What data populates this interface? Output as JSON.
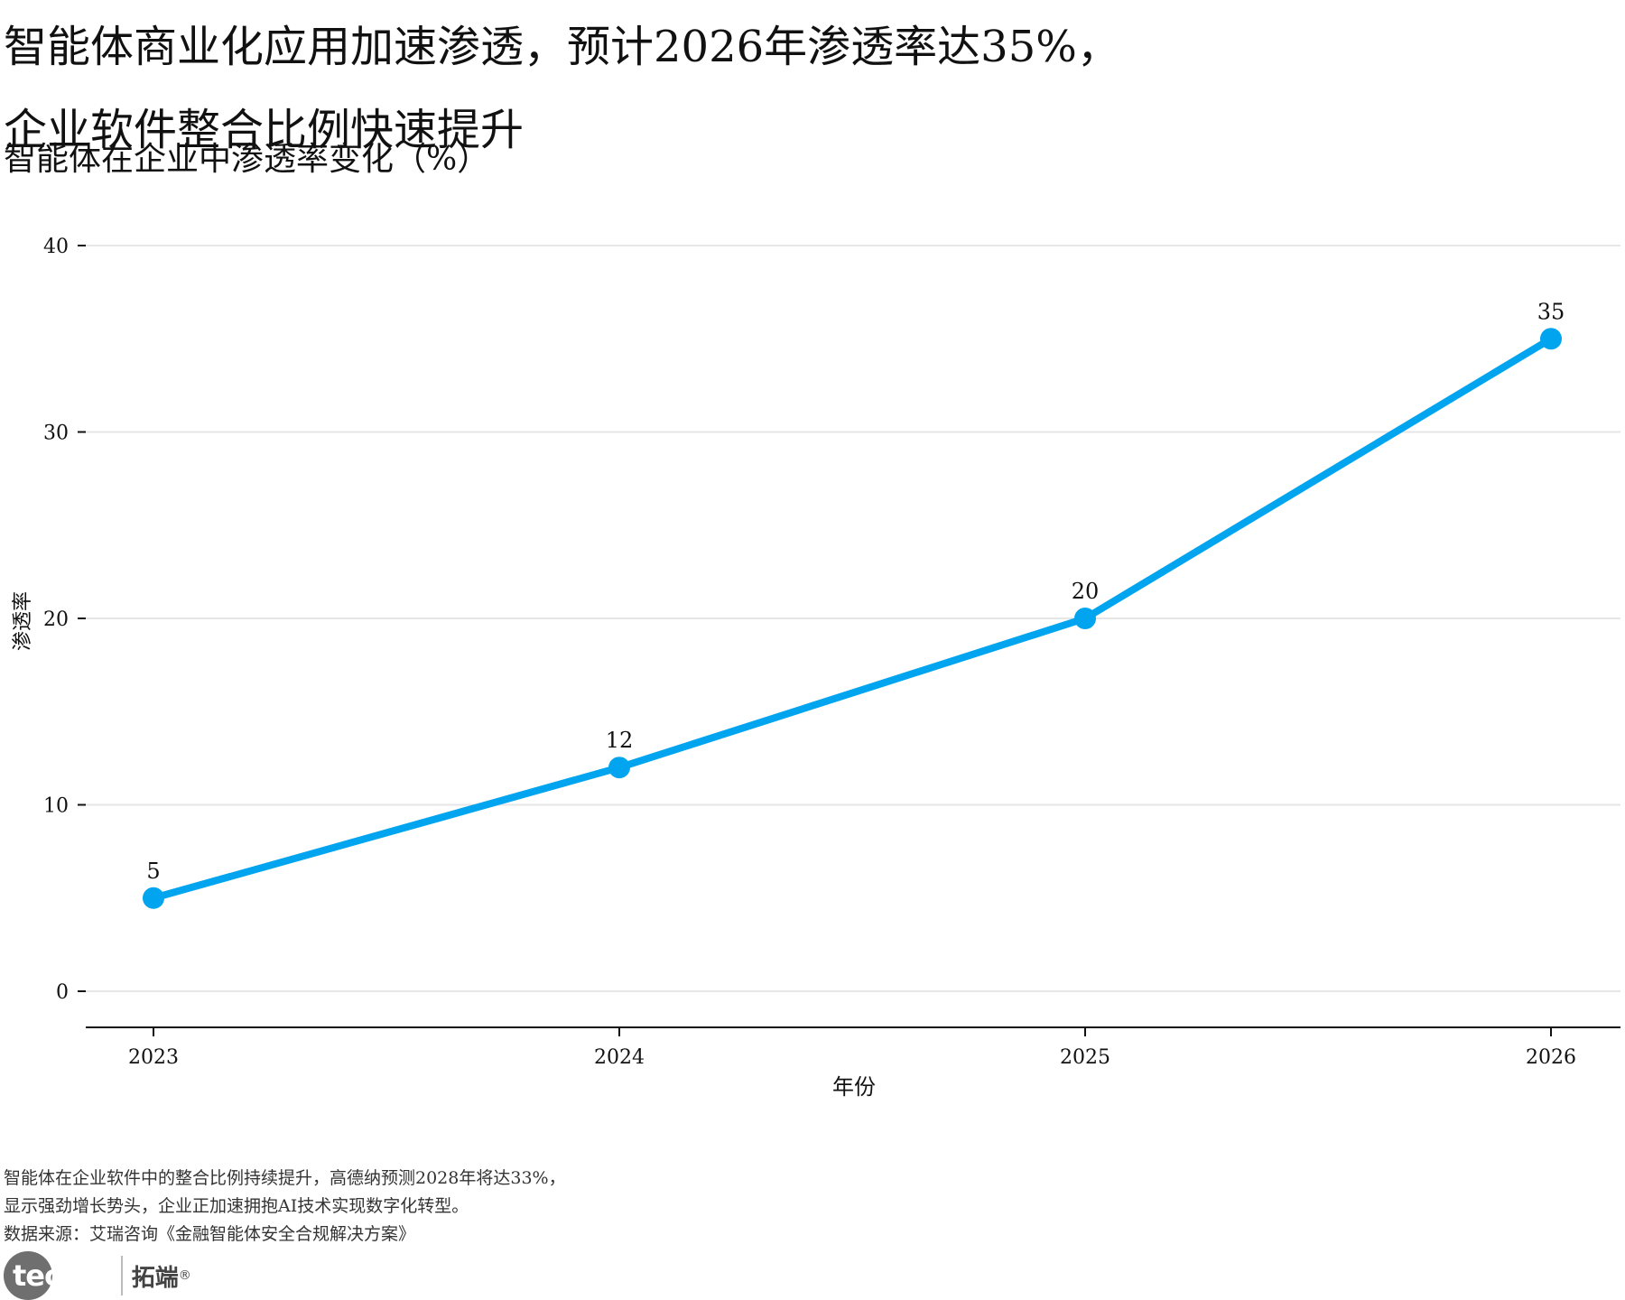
{
  "title_line1": "智能体商业化应用加速渗透，预计2026年渗透率达35%，",
  "title_line2": "企业软件整合比例快速提升",
  "subtitle": "智能体在企业中渗透率变化（%）",
  "caption_line1": "智能体在企业软件中的整合比例持续提升，高德纳预测2028年将达33%，",
  "caption_line2": "显示强劲增长势头，企业正加速拥抱AI技术实现数字化转型。",
  "caption_line3": "数据来源：艾瑞咨询《金融智能体安全合规解决方案》",
  "logo": {
    "left": "tecdat",
    "right": "拓端",
    "registered": "®"
  },
  "colors": {
    "line": "#00a4ef",
    "grid": "#e6e6e6",
    "axis": "#111111"
  },
  "chart_data": {
    "type": "line",
    "x": [
      "2023",
      "2024",
      "2025",
      "2026"
    ],
    "series": [
      {
        "values": [
          5,
          12,
          20,
          35
        ]
      }
    ],
    "xlabel": "年份",
    "ylabel": "渗透率",
    "ylim": [
      0,
      40
    ],
    "yticks": [
      0,
      10,
      20,
      30,
      40
    ],
    "grid": "horizontal",
    "data_labels": true
  }
}
